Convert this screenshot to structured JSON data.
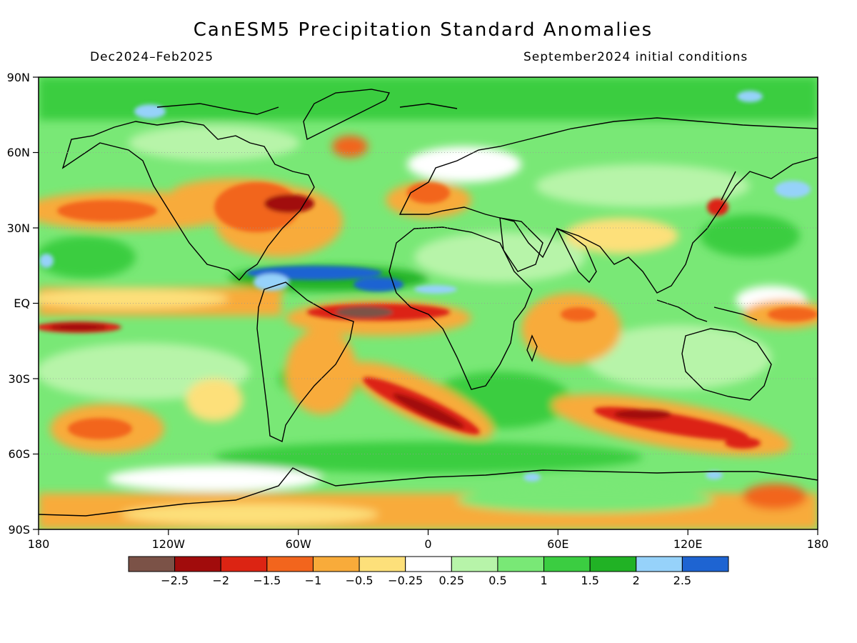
{
  "title": "CanESM5 Precipitation Standard Anomalies",
  "period": "Dec2024–Feb2025",
  "init_conditions": "September2024 initial conditions",
  "map": {
    "lat_labels": [
      "90N",
      "60N",
      "30N",
      "EQ",
      "30S",
      "60S",
      "90S"
    ],
    "lon_labels": [
      "180",
      "120W",
      "60W",
      "0",
      "60E",
      "120E",
      "180"
    ],
    "variable": "precipitation standard anomaly",
    "projection": "cylindrical equidistant"
  },
  "colorbar": {
    "colors": [
      "#7b5247",
      "#a10c0c",
      "#dc2413",
      "#f2651d",
      "#f8ab3a",
      "#fde07a",
      "#ffffff",
      "#b7f4a9",
      "#79e876",
      "#3bcd41",
      "#21b225",
      "#96d2fa",
      "#1e64d2"
    ],
    "labels": [
      "−2.5",
      "−2",
      "−1.5",
      "−1",
      "−0.5",
      "−0.25",
      "0.25",
      "0.5",
      "1",
      "1.5",
      "2",
      "2.5"
    ]
  }
}
